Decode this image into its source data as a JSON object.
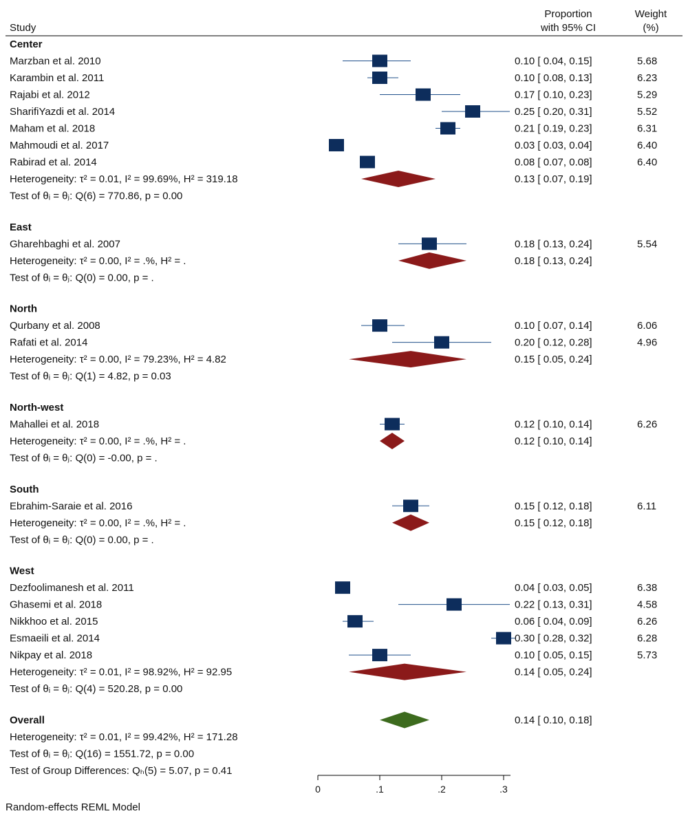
{
  "header": {
    "study": "Study",
    "effect_line1": "Proportion",
    "effect_line2": "with 95% CI",
    "weight_line1": "Weight",
    "weight_line2": "(%)"
  },
  "footer": {
    "group_test": "Test of Group Differences: Qₕ(5) = 5.07, p = 0.41",
    "model": "Random-effects REML Model"
  },
  "chart_data": {
    "type": "forest",
    "xlim": [
      0,
      0.3
    ],
    "xticks": [
      {
        "v": 0,
        "label": "0"
      },
      {
        "v": 0.1,
        "label": ".1"
      },
      {
        "v": 0.2,
        "label": ".2"
      },
      {
        "v": 0.3,
        "label": ".3"
      }
    ],
    "colors": {
      "study_box": "#0d2d5c",
      "ci_line": "#1f4f8a",
      "subgroup_diamond": "#8b1a1a",
      "overall_diamond": "#3d6b1e"
    },
    "groups": [
      {
        "name": "Center",
        "studies": [
          {
            "label": "Marzban et al. 2010",
            "est": 0.1,
            "lo": 0.04,
            "hi": 0.15,
            "ci_text": "0.10 [ 0.04, 0.15]",
            "weight": "5.68"
          },
          {
            "label": "Karambin et al. 2011",
            "est": 0.1,
            "lo": 0.08,
            "hi": 0.13,
            "ci_text": "0.10 [ 0.08, 0.13]",
            "weight": "6.23"
          },
          {
            "label": "Rajabi et al. 2012",
            "est": 0.17,
            "lo": 0.1,
            "hi": 0.23,
            "ci_text": "0.17 [ 0.10, 0.23]",
            "weight": "5.29"
          },
          {
            "label": "SharifiYazdi et al. 2014",
            "est": 0.25,
            "lo": 0.2,
            "hi": 0.31,
            "ci_text": "0.25 [ 0.20, 0.31]",
            "weight": "5.52"
          },
          {
            "label": "Maham et al. 2018",
            "est": 0.21,
            "lo": 0.19,
            "hi": 0.23,
            "ci_text": "0.21 [ 0.19, 0.23]",
            "weight": "6.31"
          },
          {
            "label": "Mahmoudi et al. 2017",
            "est": 0.03,
            "lo": 0.03,
            "hi": 0.04,
            "ci_text": "0.03 [ 0.03, 0.04]",
            "weight": "6.40"
          },
          {
            "label": "Rabirad et al. 2014",
            "est": 0.08,
            "lo": 0.07,
            "hi": 0.08,
            "ci_text": "0.08 [ 0.07, 0.08]",
            "weight": "6.40"
          }
        ],
        "summary": {
          "text": "Heterogeneity: τ² = 0.01, I² = 99.69%, H² = 319.18",
          "est": 0.13,
          "lo": 0.07,
          "hi": 0.19,
          "ci_text": "0.13 [ 0.07, 0.19]"
        },
        "test": "Test of θᵢ = θⱼ: Q(6) = 770.86, p = 0.00"
      },
      {
        "name": "East",
        "studies": [
          {
            "label": "Gharehbaghi et al. 2007",
            "est": 0.18,
            "lo": 0.13,
            "hi": 0.24,
            "ci_text": "0.18 [ 0.13, 0.24]",
            "weight": "5.54"
          }
        ],
        "summary": {
          "text": "Heterogeneity: τ² = 0.00, I² = .%, H² = .",
          "est": 0.18,
          "lo": 0.13,
          "hi": 0.24,
          "ci_text": "0.18 [ 0.13, 0.24]"
        },
        "test": "Test of θᵢ = θⱼ: Q(0) = 0.00, p = ."
      },
      {
        "name": "North",
        "studies": [
          {
            "label": "Qurbany et al. 2008",
            "est": 0.1,
            "lo": 0.07,
            "hi": 0.14,
            "ci_text": "0.10 [ 0.07, 0.14]",
            "weight": "6.06"
          },
          {
            "label": "Rafati et al. 2014",
            "est": 0.2,
            "lo": 0.12,
            "hi": 0.28,
            "ci_text": "0.20 [ 0.12, 0.28]",
            "weight": "4.96"
          }
        ],
        "summary": {
          "text": "Heterogeneity: τ² = 0.00, I² = 79.23%, H² = 4.82",
          "est": 0.15,
          "lo": 0.05,
          "hi": 0.24,
          "ci_text": "0.15 [ 0.05, 0.24]"
        },
        "test": "Test of θᵢ = θⱼ: Q(1) = 4.82, p = 0.03"
      },
      {
        "name": "North-west",
        "studies": [
          {
            "label": "Mahallei et al. 2018",
            "est": 0.12,
            "lo": 0.1,
            "hi": 0.14,
            "ci_text": "0.12 [ 0.10, 0.14]",
            "weight": "6.26"
          }
        ],
        "summary": {
          "text": "Heterogeneity: τ² = 0.00, I² = .%, H² = .",
          "est": 0.12,
          "lo": 0.1,
          "hi": 0.14,
          "ci_text": "0.12 [ 0.10, 0.14]"
        },
        "test": "Test of θᵢ = θⱼ: Q(0) = -0.00, p = ."
      },
      {
        "name": "South",
        "studies": [
          {
            "label": "Ebrahim-Saraie et al. 2016",
            "est": 0.15,
            "lo": 0.12,
            "hi": 0.18,
            "ci_text": "0.15 [ 0.12, 0.18]",
            "weight": "6.11"
          }
        ],
        "summary": {
          "text": "Heterogeneity: τ² = 0.00, I² = .%, H² = .",
          "est": 0.15,
          "lo": 0.12,
          "hi": 0.18,
          "ci_text": "0.15 [ 0.12, 0.18]"
        },
        "test": "Test of θᵢ = θⱼ: Q(0) = 0.00, p = ."
      },
      {
        "name": "West",
        "studies": [
          {
            "label": "Dezfoolimanesh et al. 2011",
            "est": 0.04,
            "lo": 0.03,
            "hi": 0.05,
            "ci_text": "0.04 [ 0.03, 0.05]",
            "weight": "6.38"
          },
          {
            "label": "Ghasemi et al. 2018",
            "est": 0.22,
            "lo": 0.13,
            "hi": 0.31,
            "ci_text": "0.22 [ 0.13, 0.31]",
            "weight": "4.58"
          },
          {
            "label": "Nikkhoo et al. 2015",
            "est": 0.06,
            "lo": 0.04,
            "hi": 0.09,
            "ci_text": "0.06 [ 0.04, 0.09]",
            "weight": "6.26"
          },
          {
            "label": "Esmaeili et al. 2014",
            "est": 0.3,
            "lo": 0.28,
            "hi": 0.32,
            "ci_text": "0.30 [ 0.28, 0.32]",
            "weight": "6.28"
          },
          {
            "label": "Nikpay et al. 2018",
            "est": 0.1,
            "lo": 0.05,
            "hi": 0.15,
            "ci_text": "0.10 [ 0.05, 0.15]",
            "weight": "5.73"
          }
        ],
        "summary": {
          "text": "Heterogeneity: τ² = 0.01, I² = 98.92%, H² = 92.95",
          "est": 0.14,
          "lo": 0.05,
          "hi": 0.24,
          "ci_text": "0.14 [ 0.05, 0.24]"
        },
        "test": "Test of θᵢ = θⱼ: Q(4) = 520.28, p = 0.00"
      }
    ],
    "overall": {
      "name": "Overall",
      "est": 0.14,
      "lo": 0.1,
      "hi": 0.18,
      "ci_text": "0.14 [ 0.10, 0.18]",
      "heterogeneity": "Heterogeneity: τ² = 0.01, I² = 99.42%, H² = 171.28",
      "test": "Test of θᵢ = θⱼ: Q(16) = 1551.72, p = 0.00"
    }
  }
}
